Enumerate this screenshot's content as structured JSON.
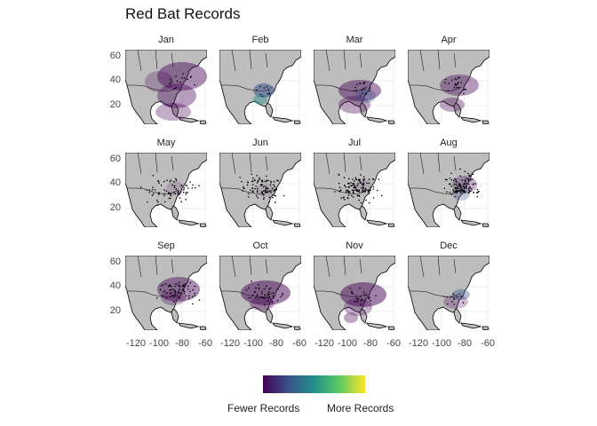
{
  "figure": {
    "title": "Red Bat Records",
    "months": [
      "Jan",
      "Feb",
      "Mar",
      "Apr",
      "May",
      "Jun",
      "Jul",
      "Aug",
      "Sep",
      "Oct",
      "Nov",
      "Dec"
    ],
    "y_ticks": [
      "60",
      "40",
      "20"
    ],
    "x_ticks": [
      "-120",
      "-100",
      "-80",
      "-60"
    ],
    "legend": {
      "low_label": "Fewer Records",
      "high_label": "More Records",
      "colors": [
        "#440154",
        "#3b528b",
        "#21908c",
        "#5dc963",
        "#fde725"
      ]
    },
    "map_colors": {
      "land": "#bdbdbd",
      "ocean": "#ffffff",
      "border": "#000000",
      "point": "#000000"
    }
  }
}
